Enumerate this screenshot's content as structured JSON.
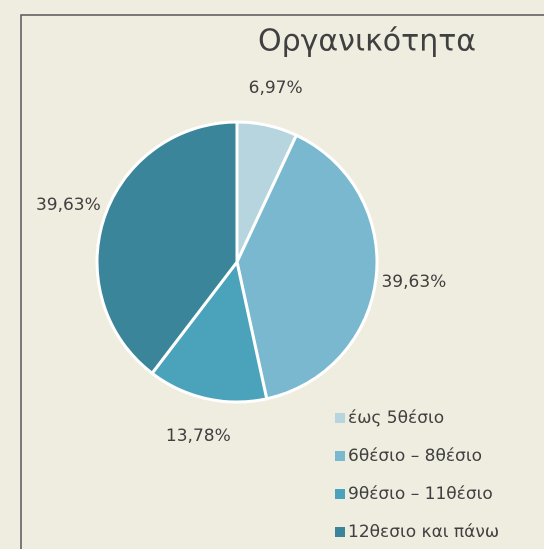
{
  "chart_data": {
    "type": "pie",
    "title": "Οργανικότητα",
    "categories": [
      "έως 5θέσιο",
      "6θέσιο – 8θέσιο",
      "9θέσιο – 11θέσιο",
      "12θεσιο και πάνω"
    ],
    "values": [
      6.97,
      39.63,
      13.78,
      39.63
    ],
    "value_labels": [
      "6,97%",
      "39,63%",
      "13,78%",
      "39,63%"
    ],
    "colors": [
      "#b7d5df",
      "#7ab8cf",
      "#4aa3bb",
      "#3a8599"
    ]
  }
}
